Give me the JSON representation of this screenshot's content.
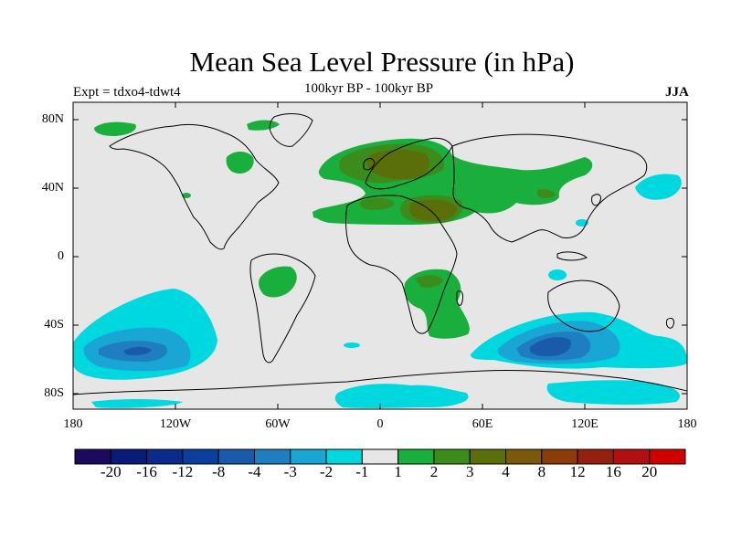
{
  "title": "Mean Sea Level Pressure (in hPa)",
  "subtitle": "100kyr BP - 100kyr BP",
  "expt_label": "Expt = tdxo4-tdwt4",
  "season": "JJA",
  "lat_ticks": [
    "80N",
    "40N",
    "0",
    "40S",
    "80S"
  ],
  "lon_ticks": [
    "180",
    "120W",
    "60W",
    "0",
    "60E",
    "120E",
    "180"
  ],
  "colorbar": {
    "colors": [
      "#1c0a5e",
      "#0a1a78",
      "#0a2a8c",
      "#0a3f9e",
      "#1a5aaa",
      "#1f7ec0",
      "#19a6d4",
      "#00d8e0",
      "#e6e6e6",
      "#1aae3c",
      "#3c8c1c",
      "#5a6e0a",
      "#7a5a0a",
      "#8c3c0a",
      "#962010",
      "#b01010",
      "#d00000"
    ],
    "labels": [
      "-20",
      "-16",
      "-12",
      "-8",
      "-4",
      "-3",
      "-2",
      "-1",
      "1",
      "2",
      "3",
      "4",
      "8",
      "12",
      "16",
      "20"
    ]
  },
  "colors": {
    "background": "#e6e6e6",
    "coast": "#000000"
  }
}
